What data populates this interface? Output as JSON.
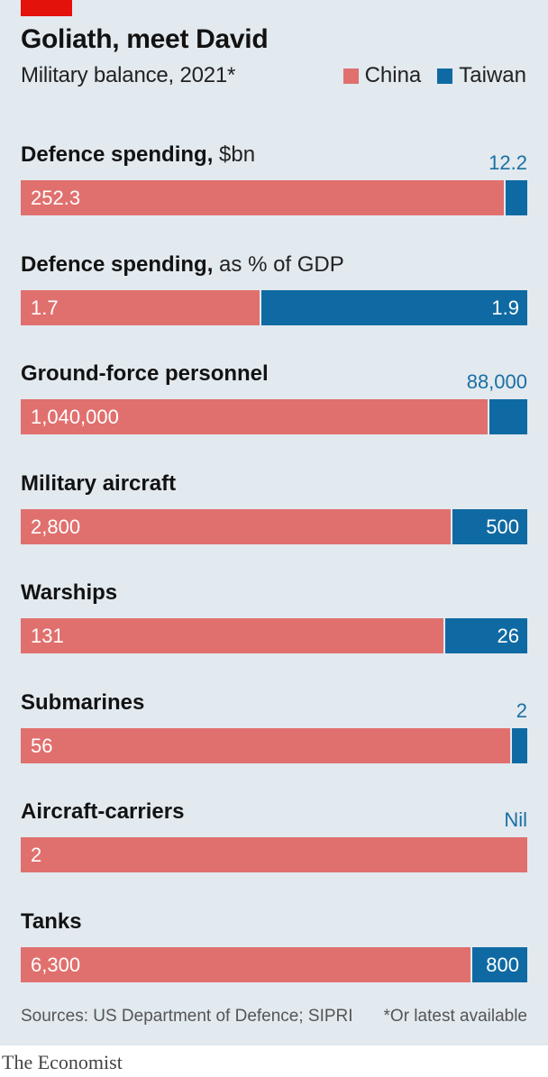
{
  "title": "Goliath, meet David",
  "subtitle": "Military balance, 2021*",
  "legend": {
    "china": "China",
    "taiwan": "Taiwan"
  },
  "colors": {
    "china": "#e0706e",
    "taiwan": "#0f6aa3",
    "background": "#e2e9ef",
    "accent_red": "#e3120b"
  },
  "chart_data": {
    "type": "bar",
    "orientation": "horizontal-stacked-100",
    "series_names": [
      "China",
      "Taiwan"
    ],
    "rows": [
      {
        "label": "Defence spending,",
        "unit": "$bn",
        "china": 252.3,
        "taiwan": 12.2,
        "china_text": "252.3",
        "taiwan_text": "12.2",
        "taiwan_label_outside": true
      },
      {
        "label": "Defence spending,",
        "unit": "as % of GDP",
        "china": 1.7,
        "taiwan": 1.9,
        "china_text": "1.7",
        "taiwan_text": "1.9",
        "taiwan_label_outside": false
      },
      {
        "label": "Ground-force personnel",
        "unit": "",
        "china": 1040000,
        "taiwan": 88000,
        "china_text": "1,040,000",
        "taiwan_text": "88,000",
        "taiwan_label_outside": true
      },
      {
        "label": "Military aircraft",
        "unit": "",
        "china": 2800,
        "taiwan": 500,
        "china_text": "2,800",
        "taiwan_text": "500",
        "taiwan_label_outside": false
      },
      {
        "label": "Warships",
        "unit": "",
        "china": 131,
        "taiwan": 26,
        "china_text": "131",
        "taiwan_text": "26",
        "taiwan_label_outside": false
      },
      {
        "label": "Submarines",
        "unit": "",
        "china": 56,
        "taiwan": 2,
        "china_text": "56",
        "taiwan_text": "2",
        "taiwan_label_outside": true
      },
      {
        "label": "Aircraft-carriers",
        "unit": "",
        "china": 2,
        "taiwan": 0,
        "china_text": "2",
        "taiwan_text": "Nil",
        "taiwan_label_outside": true
      },
      {
        "label": "Tanks",
        "unit": "",
        "china": 6300,
        "taiwan": 800,
        "china_text": "6,300",
        "taiwan_text": "800",
        "taiwan_label_outside": false
      }
    ]
  },
  "footer": {
    "sources": "Sources: US Department of Defence; SIPRI",
    "note": "*Or latest available"
  },
  "brand": "The Economist"
}
